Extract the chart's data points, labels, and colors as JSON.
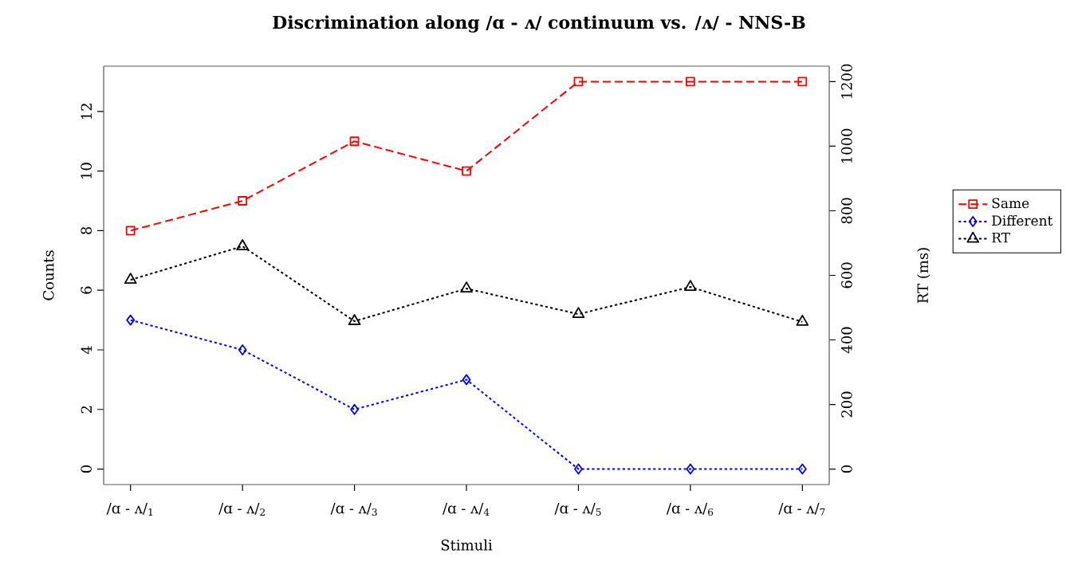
{
  "chart_data": {
    "type": "line",
    "title": "Discrimination along /ɑ - ʌ/ continuum vs. /ʌ/ - NNS-B",
    "xlabel": "Stimuli",
    "ylabel": "Counts",
    "y2label": "RT (ms)",
    "categories": [
      "/ɑ - ʌ/$_{1}$",
      "/ɑ - ʌ/$_{2}$",
      "/ɑ - ʌ/$_{3}$",
      "/ɑ - ʌ/$_{4}$",
      "/ɑ - ʌ/$_{5}$",
      "/ɑ - ʌ/$_{6}$",
      "/ɑ - ʌ/$_{7}$"
    ],
    "series": [
      {
        "name": "Same",
        "color": "#ff0000",
        "marker": "square",
        "line_style": "dashed",
        "values": [
          8,
          9,
          11,
          10,
          13,
          13,
          13
        ]
      },
      {
        "name": "Different",
        "color": "#0000ff",
        "marker": "diamond",
        "line_style": "dotted",
        "values": [
          5,
          4,
          2,
          3,
          0,
          0,
          0
        ]
      },
      {
        "name": "RT",
        "color": "#000000",
        "marker": "triangle",
        "line_style": "dotted",
        "axis": "y2",
        "values": [
          586,
          690,
          458,
          559,
          480,
          564,
          456
        ]
      }
    ],
    "ylim": [
      -0.52,
      13.52
    ],
    "yticks": [
      0,
      2,
      4,
      6,
      8,
      10,
      12
    ],
    "y2lim": [
      -48,
      1248
    ],
    "y2ticks": [
      0,
      200,
      400,
      600,
      800,
      1000,
      1200
    ],
    "grid": false,
    "legend": "right"
  }
}
